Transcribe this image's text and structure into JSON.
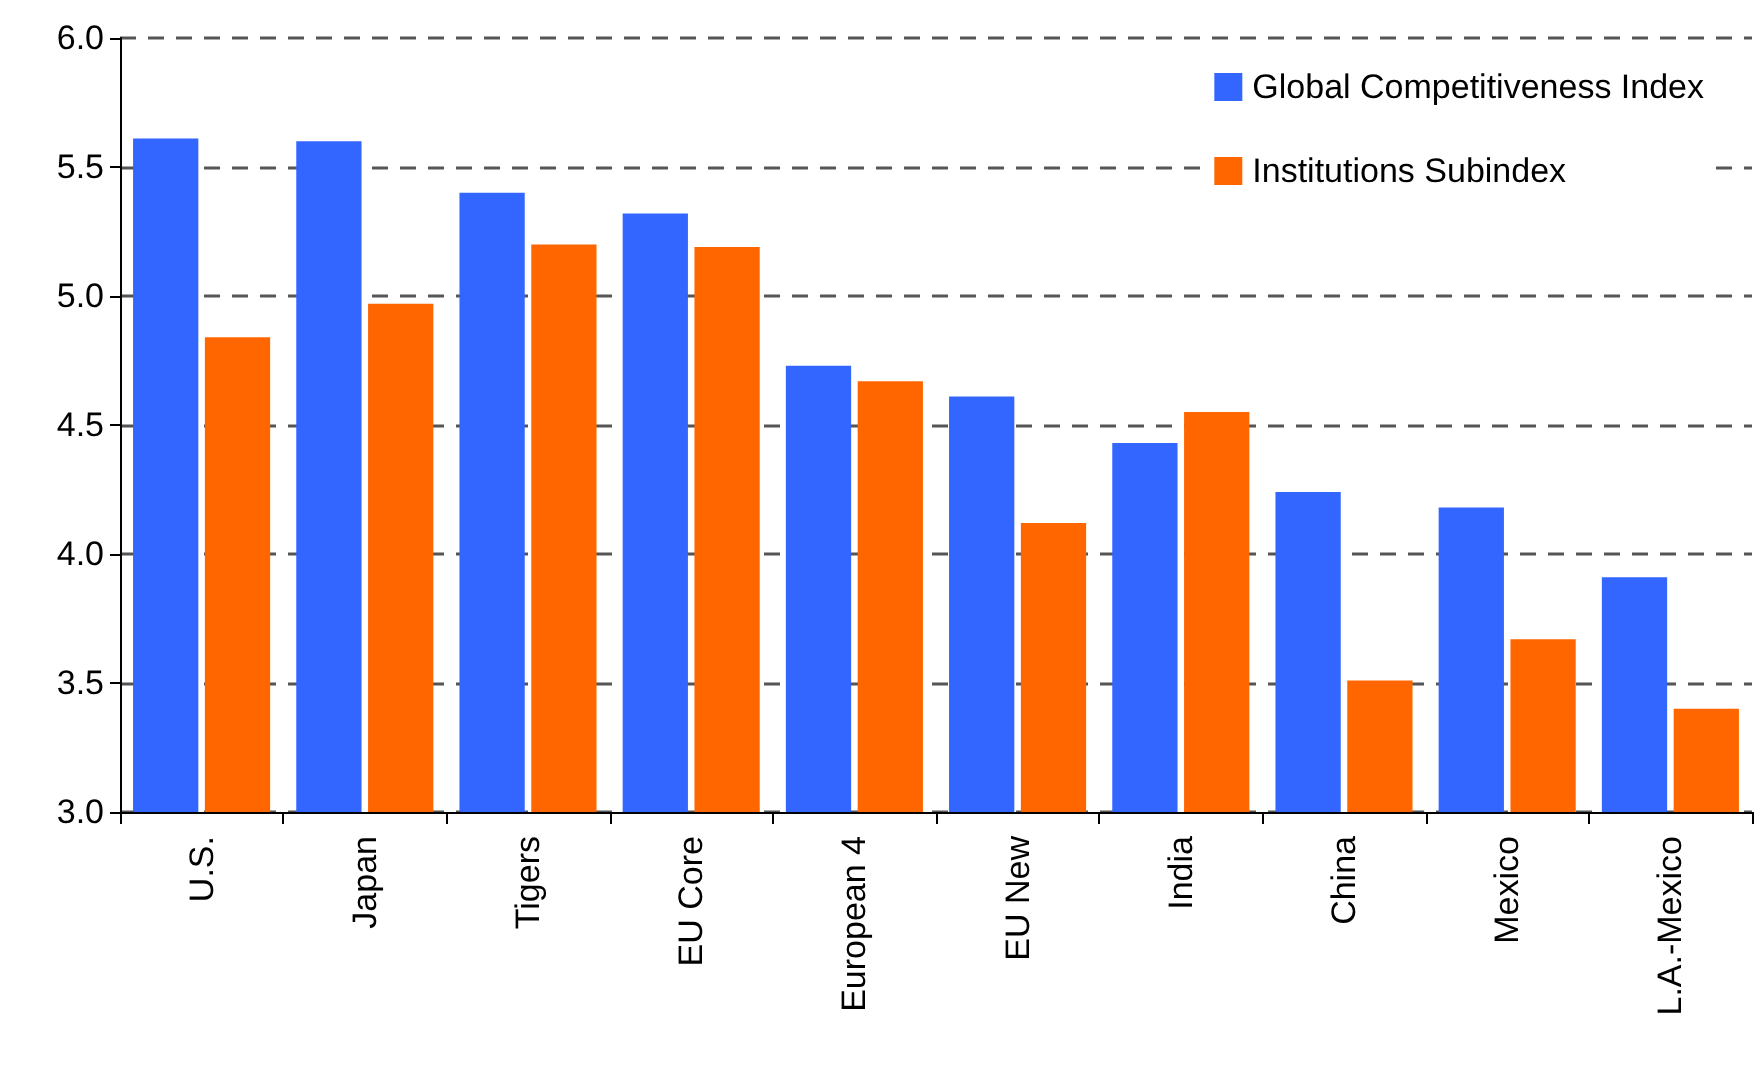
{
  "chart_data": {
    "type": "bar",
    "categories": [
      "U.S.",
      "Japan",
      "Tigers",
      "EU Core",
      "European 4",
      "EU New",
      "India",
      "China",
      "Mexico",
      "L.A.-Mexico"
    ],
    "series": [
      {
        "name": "Global Competitiveness Index",
        "color": "#3366ff",
        "values": [
          5.61,
          5.6,
          5.4,
          5.32,
          4.73,
          4.61,
          4.43,
          4.24,
          4.18,
          3.91
        ]
      },
      {
        "name": "Institutions Subindex",
        "color": "#ff6600",
        "values": [
          4.84,
          4.97,
          5.2,
          5.19,
          4.67,
          4.12,
          4.55,
          3.51,
          3.67,
          3.4
        ]
      }
    ],
    "ylim": [
      3.0,
      6.0
    ],
    "yticks": [
      {
        "value": 3.0,
        "label": "3.0"
      },
      {
        "value": 3.5,
        "label": "3.5"
      },
      {
        "value": 4.0,
        "label": "4.0"
      },
      {
        "value": 4.5,
        "label": "4.5"
      },
      {
        "value": 5.0,
        "label": "5.0"
      },
      {
        "value": 5.5,
        "label": "5.5"
      },
      {
        "value": 6.0,
        "label": "6.0"
      }
    ],
    "grid": "y",
    "legend": "top right"
  }
}
